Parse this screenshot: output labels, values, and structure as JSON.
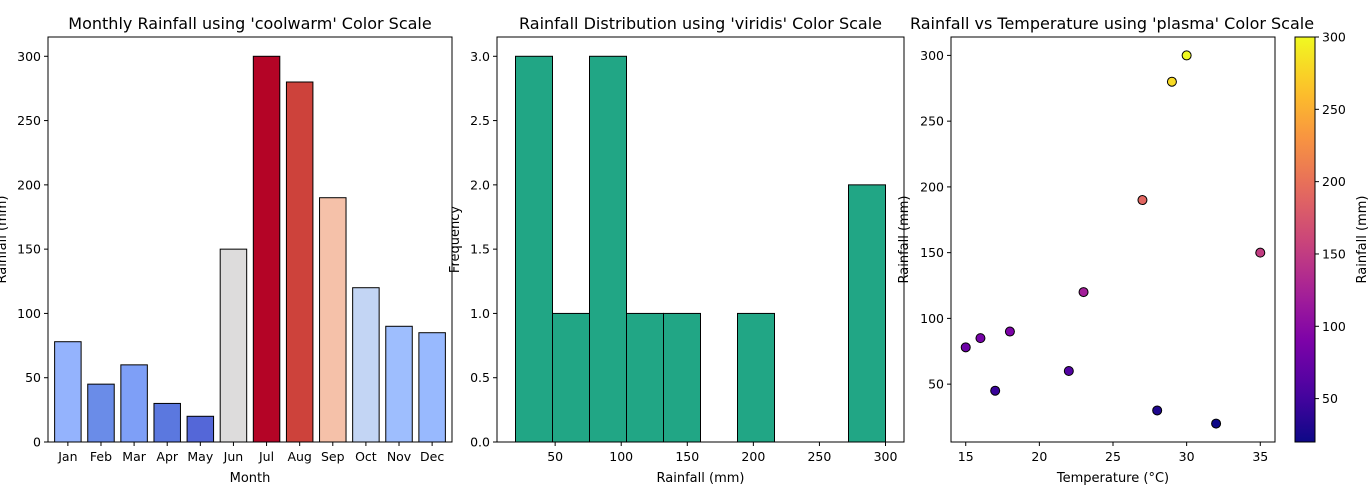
{
  "chart_data": [
    {
      "type": "bar",
      "title": "Monthly Rainfall using 'coolwarm' Color Scale",
      "xlabel": "Month",
      "ylabel": "Rainfall (mm)",
      "categories": [
        "Jan",
        "Feb",
        "Mar",
        "Apr",
        "May",
        "Jun",
        "Jul",
        "Aug",
        "Sep",
        "Oct",
        "Nov",
        "Dec"
      ],
      "values": [
        78,
        45,
        60,
        30,
        20,
        150,
        300,
        280,
        190,
        120,
        90,
        85
      ],
      "colors": [
        "#94b3fd",
        "#6a8ce8",
        "#7e9ff7",
        "#5b78df",
        "#5467d8",
        "#dddcdc",
        "#b40426",
        "#cd423b",
        "#f5c1a9",
        "#c3d5f4",
        "#9ebefe",
        "#98b9fe"
      ],
      "ylim": [
        0,
        315
      ],
      "yticks": [
        0,
        50,
        100,
        150,
        200,
        250,
        300
      ],
      "colorscale": "coolwarm"
    },
    {
      "type": "histogram",
      "title": "Rainfall Distribution using 'viridis' Color Scale",
      "xlabel": "Rainfall (mm)",
      "ylabel": "Frequency",
      "bin_edges": [
        20,
        48,
        76,
        104,
        132,
        160,
        188,
        216,
        244,
        272,
        300
      ],
      "counts": [
        3,
        1,
        3,
        1,
        1,
        0,
        1,
        0,
        0,
        2
      ],
      "color": "#21a685",
      "xlim": [
        6,
        314
      ],
      "ylim": [
        0,
        3.15
      ],
      "xticks": [
        50,
        100,
        150,
        200,
        250,
        300
      ],
      "yticks": [
        "0.0",
        "0.5",
        "1.0",
        "1.5",
        "2.0",
        "2.5",
        "3.0"
      ],
      "colorscale": "viridis"
    },
    {
      "type": "scatter",
      "title": "Rainfall vs Temperature using 'plasma' Color Scale",
      "xlabel": "Temperature (°C)",
      "ylabel": "Rainfall (mm)",
      "x": [
        15,
        17,
        16,
        28,
        32,
        35,
        30,
        29,
        27,
        23,
        18,
        22
      ],
      "y": [
        78,
        45,
        85,
        30,
        20,
        150,
        300,
        280,
        190,
        120,
        90,
        60
      ],
      "xlim": [
        14,
        36
      ],
      "ylim": [
        6,
        314
      ],
      "xticks": [
        15,
        20,
        25,
        30,
        35
      ],
      "yticks": [
        50,
        100,
        150,
        200,
        250,
        300
      ],
      "colorbar": {
        "label": "Rainfall (mm)",
        "min": 20,
        "max": 300,
        "ticks": [
          50,
          100,
          150,
          200,
          250,
          300
        ]
      },
      "colorscale": "plasma"
    }
  ]
}
